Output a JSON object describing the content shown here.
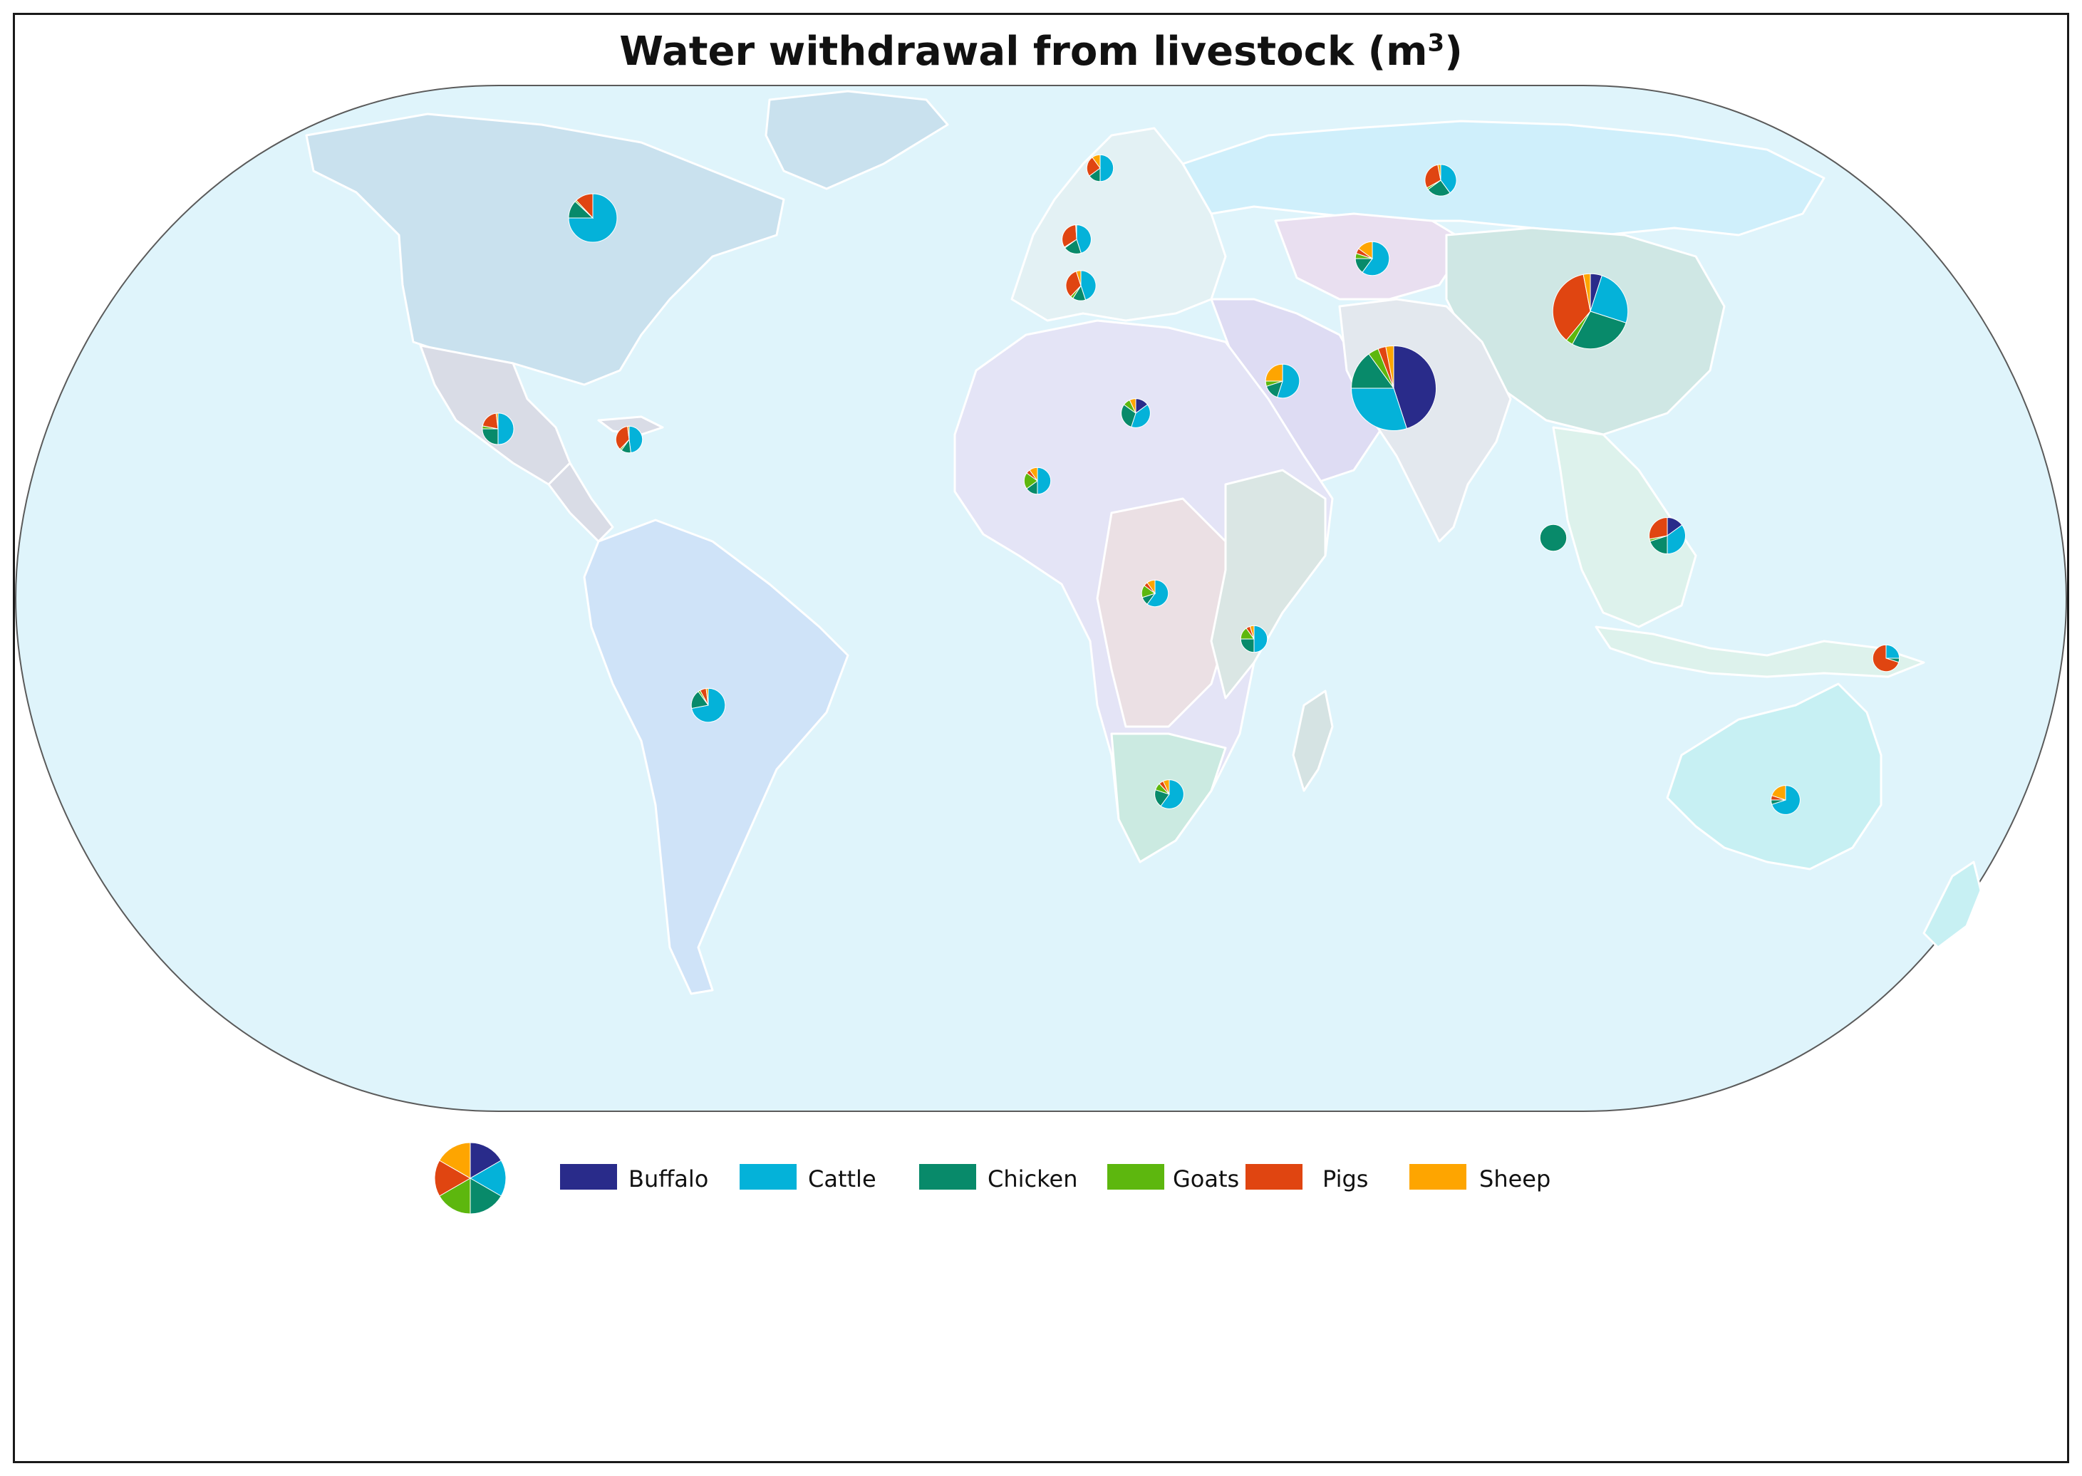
{
  "title": {
    "text": "Water withdrawal from livestock (m",
    "sup": "3",
    "close": ")"
  },
  "legend": {
    "items": [
      {
        "label": "Buffalo",
        "color": "#292b8a"
      },
      {
        "label": "Cattle",
        "color": "#04b2d9"
      },
      {
        "label": "Chicken",
        "color": "#088a6a"
      },
      {
        "label": "Goats",
        "color": "#5db70e"
      },
      {
        "label": "Pigs",
        "color": "#e04511"
      },
      {
        "label": "Sheep",
        "color": "#fea500"
      }
    ],
    "sample_pie": [
      1,
      1,
      1,
      1,
      1,
      1
    ]
  },
  "chart_data": {
    "type": "map-pie",
    "series_order": [
      "Buffalo",
      "Cattle",
      "Chicken",
      "Goats",
      "Pigs",
      "Sheep"
    ],
    "regions": [
      {
        "id": "north-america",
        "size": 1.0,
        "shares": [
          0,
          75,
          12,
          1,
          12,
          0
        ]
      },
      {
        "id": "mexico",
        "size": 0.65,
        "shares": [
          0,
          50,
          25,
          3,
          20,
          2
        ]
      },
      {
        "id": "caribbean",
        "size": 0.55,
        "shares": [
          0,
          48,
          12,
          2,
          36,
          2
        ]
      },
      {
        "id": "brazil",
        "size": 0.7,
        "shares": [
          0,
          72,
          18,
          2,
          6,
          2
        ]
      },
      {
        "id": "scandinavia",
        "size": 0.55,
        "shares": [
          0,
          50,
          15,
          0,
          25,
          10
        ]
      },
      {
        "id": "western-europe",
        "size": 0.6,
        "shares": [
          0,
          45,
          20,
          1,
          33,
          1
        ]
      },
      {
        "id": "southern-europe",
        "size": 0.62,
        "shares": [
          0,
          45,
          14,
          3,
          33,
          5
        ]
      },
      {
        "id": "russia",
        "size": 0.65,
        "shares": [
          0,
          40,
          25,
          2,
          30,
          3
        ]
      },
      {
        "id": "central-asia",
        "size": 0.7,
        "shares": [
          0,
          60,
          15,
          5,
          5,
          15
        ]
      },
      {
        "id": "china",
        "size": 1.55,
        "shares": [
          5,
          25,
          28,
          3,
          36,
          3
        ]
      },
      {
        "id": "south-asia",
        "size": 1.75,
        "shares": [
          45,
          30,
          15,
          4,
          3,
          3
        ]
      },
      {
        "id": "middle-east",
        "size": 0.7,
        "shares": [
          0,
          55,
          15,
          5,
          0,
          25
        ]
      },
      {
        "id": "north-africa",
        "size": 0.6,
        "shares": [
          15,
          40,
          30,
          8,
          0,
          7
        ]
      },
      {
        "id": "west-africa",
        "size": 0.55,
        "shares": [
          0,
          50,
          15,
          20,
          5,
          10
        ]
      },
      {
        "id": "central-africa",
        "size": 0.55,
        "shares": [
          0,
          60,
          10,
          15,
          5,
          10
        ]
      },
      {
        "id": "east-africa",
        "size": 0.55,
        "shares": [
          0,
          50,
          25,
          15,
          5,
          5
        ]
      },
      {
        "id": "southern-africa",
        "size": 0.6,
        "shares": [
          0,
          60,
          20,
          8,
          5,
          7
        ]
      },
      {
        "id": "indian-ocean-islands",
        "size": 0.55,
        "shares": [
          0,
          0,
          100,
          0,
          0,
          0
        ]
      },
      {
        "id": "southeast-asia",
        "size": 0.75,
        "shares": [
          15,
          35,
          20,
          2,
          28,
          0
        ]
      },
      {
        "id": "papua-new-guinea",
        "size": 0.55,
        "shares": [
          0,
          25,
          5,
          0,
          70,
          0
        ]
      },
      {
        "id": "oceania",
        "size": 0.6,
        "shares": [
          0,
          70,
          5,
          0,
          5,
          20
        ]
      }
    ]
  }
}
